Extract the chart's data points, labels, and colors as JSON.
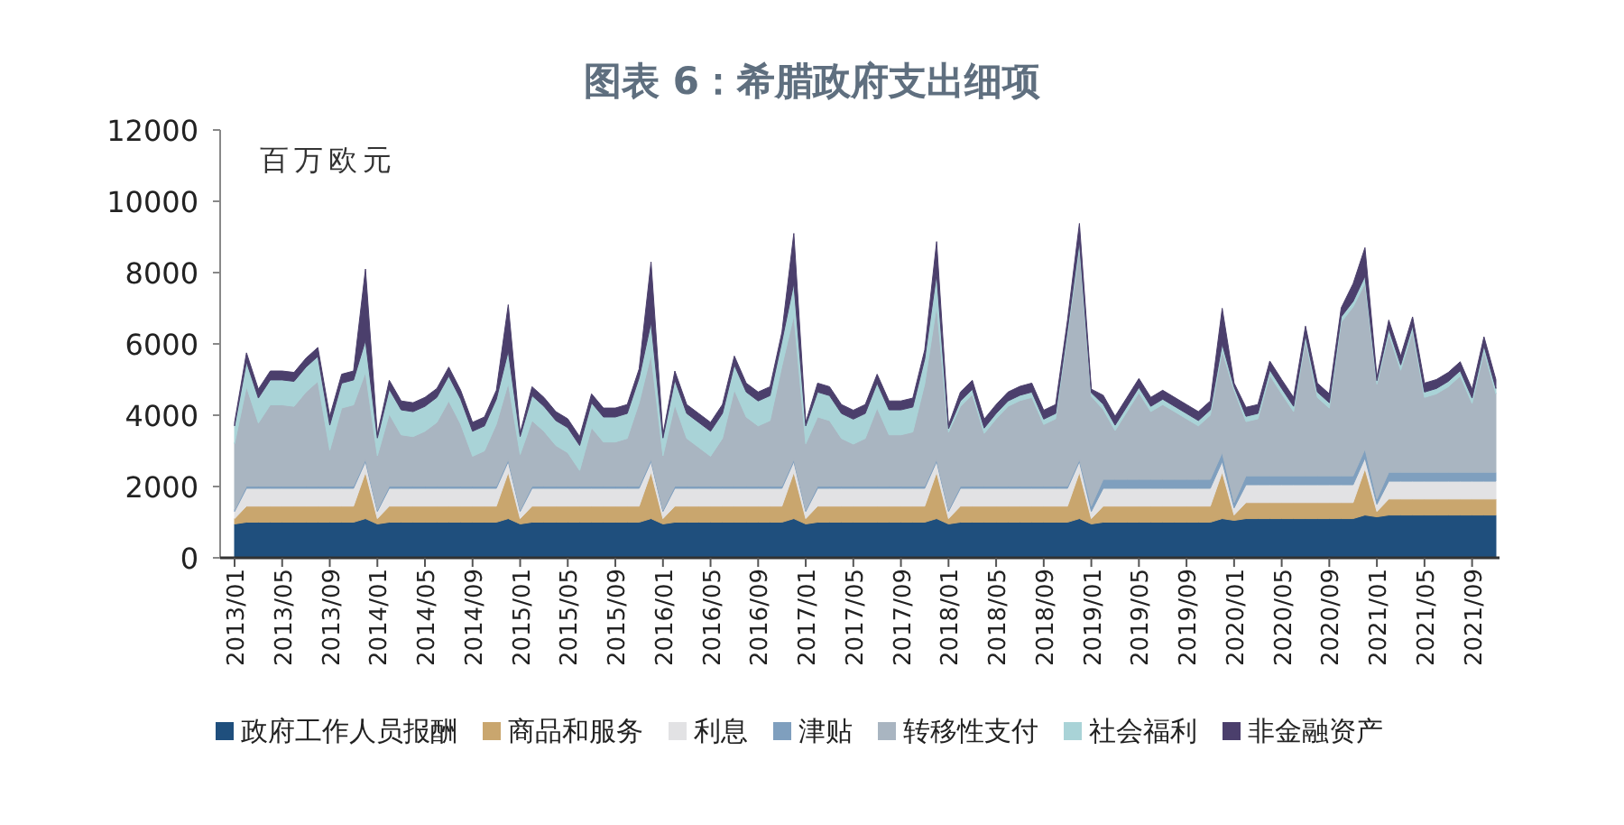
{
  "chart_data": {
    "type": "area",
    "stacked": true,
    "title": "图表 6：希腊政府支出细项",
    "ylabel": "百万欧元",
    "categories": [
      "2013/01",
      null,
      null,
      null,
      "2013/05",
      null,
      null,
      null,
      "2013/09",
      null,
      null,
      null,
      "2014/01",
      null,
      null,
      null,
      "2014/05",
      null,
      null,
      null,
      "2014/09",
      null,
      null,
      null,
      "2015/01",
      null,
      null,
      null,
      "2015/05",
      null,
      null,
      null,
      "2015/09",
      null,
      null,
      null,
      "2016/01",
      null,
      null,
      null,
      "2016/05",
      null,
      null,
      null,
      "2016/09",
      null,
      null,
      null,
      "2017/01",
      null,
      null,
      null,
      "2017/05",
      null,
      null,
      null,
      "2017/09",
      null,
      null,
      null,
      "2018/01",
      null,
      null,
      null,
      "2018/05",
      null,
      null,
      null,
      "2018/09",
      null,
      null,
      null,
      "2019/01",
      null,
      null,
      null,
      "2019/05",
      null,
      null,
      null,
      "2019/09",
      null,
      null,
      null,
      "2020/01",
      null,
      null,
      null,
      "2020/05",
      null,
      null,
      null,
      "2020/09",
      null,
      null,
      null,
      "2021/01",
      null,
      null,
      null,
      "2021/05",
      null,
      null,
      null,
      "2021/09",
      null,
      null
    ],
    "ylim": [
      0,
      12000
    ],
    "yticks": [
      0,
      2000,
      4000,
      6000,
      8000,
      10000,
      12000
    ],
    "grid": false,
    "legend": "bottom",
    "series": [
      {
        "name": "政府工作人员报酬",
        "color": "#1f4f7d",
        "values": [
          950,
          1000,
          1000,
          1000,
          1000,
          1000,
          1000,
          1000,
          1000,
          1000,
          1000,
          1100,
          950,
          1000,
          1000,
          1000,
          1000,
          1000,
          1000,
          1000,
          1000,
          1000,
          1000,
          1100,
          950,
          1000,
          1000,
          1000,
          1000,
          1000,
          1000,
          1000,
          1000,
          1000,
          1000,
          1100,
          950,
          1000,
          1000,
          1000,
          1000,
          1000,
          1000,
          1000,
          1000,
          1000,
          1000,
          1100,
          950,
          1000,
          1000,
          1000,
          1000,
          1000,
          1000,
          1000,
          1000,
          1000,
          1000,
          1100,
          950,
          1000,
          1000,
          1000,
          1000,
          1000,
          1000,
          1000,
          1000,
          1000,
          1000,
          1100,
          950,
          1000,
          1000,
          1000,
          1000,
          1000,
          1000,
          1000,
          1000,
          1000,
          1000,
          1100,
          1050,
          1100,
          1100,
          1100,
          1100,
          1100,
          1100,
          1100,
          1100,
          1100,
          1100,
          1200,
          1150,
          1200,
          1200,
          1200,
          1200,
          1200,
          1200,
          1200,
          1200,
          1200,
          1200
        ]
      },
      {
        "name": "商品和服务",
        "color": "#c9a66e",
        "values": [
          150,
          450,
          450,
          450,
          450,
          450,
          450,
          450,
          450,
          450,
          450,
          1300,
          150,
          450,
          450,
          450,
          450,
          450,
          450,
          450,
          450,
          450,
          450,
          1300,
          150,
          450,
          450,
          450,
          450,
          450,
          450,
          450,
          450,
          450,
          450,
          1300,
          150,
          450,
          450,
          450,
          450,
          450,
          450,
          450,
          450,
          450,
          450,
          1300,
          150,
          450,
          450,
          450,
          450,
          450,
          450,
          450,
          450,
          450,
          450,
          1300,
          150,
          450,
          450,
          450,
          450,
          450,
          450,
          450,
          450,
          450,
          450,
          1300,
          150,
          450,
          450,
          450,
          450,
          450,
          450,
          450,
          450,
          450,
          450,
          1300,
          150,
          450,
          450,
          450,
          450,
          450,
          450,
          450,
          450,
          450,
          450,
          1300,
          150,
          450,
          450,
          450,
          450,
          450,
          450,
          450,
          450,
          450,
          450
        ]
      },
      {
        "name": "利息",
        "color": "#e2e2e4",
        "values": [
          200,
          500,
          500,
          500,
          500,
          500,
          500,
          500,
          500,
          500,
          500,
          300,
          200,
          500,
          500,
          500,
          500,
          500,
          500,
          500,
          500,
          500,
          500,
          300,
          200,
          500,
          500,
          500,
          500,
          500,
          500,
          500,
          500,
          500,
          500,
          300,
          200,
          500,
          500,
          500,
          500,
          500,
          500,
          500,
          500,
          500,
          500,
          300,
          200,
          500,
          500,
          500,
          500,
          500,
          500,
          500,
          500,
          500,
          500,
          300,
          200,
          500,
          500,
          500,
          500,
          500,
          500,
          500,
          500,
          500,
          500,
          300,
          200,
          500,
          500,
          500,
          500,
          500,
          500,
          500,
          500,
          500,
          500,
          300,
          200,
          500,
          500,
          500,
          500,
          500,
          500,
          500,
          500,
          500,
          500,
          300,
          200,
          500,
          500,
          500,
          500,
          500,
          500,
          500,
          500,
          500,
          500
        ]
      },
      {
        "name": "津贴",
        "color": "#7f9fbe",
        "values": [
          40,
          60,
          60,
          60,
          60,
          60,
          60,
          60,
          60,
          60,
          60,
          60,
          40,
          60,
          60,
          60,
          60,
          60,
          60,
          60,
          60,
          60,
          60,
          60,
          40,
          60,
          60,
          60,
          60,
          60,
          60,
          60,
          60,
          60,
          60,
          60,
          40,
          60,
          60,
          60,
          60,
          60,
          60,
          60,
          60,
          60,
          60,
          60,
          40,
          60,
          60,
          60,
          60,
          60,
          60,
          60,
          60,
          60,
          60,
          60,
          40,
          60,
          60,
          60,
          60,
          60,
          60,
          60,
          60,
          60,
          60,
          60,
          150,
          250,
          250,
          250,
          250,
          250,
          250,
          250,
          250,
          250,
          250,
          250,
          150,
          250,
          250,
          250,
          250,
          250,
          250,
          250,
          250,
          250,
          250,
          250,
          150,
          250,
          250,
          250,
          250,
          250,
          250,
          250,
          250,
          250,
          250
        ]
      },
      {
        "name": "转移性支付",
        "color": "#a9b5c1",
        "values": [
          1860,
          2790,
          1770,
          2280,
          2280,
          2240,
          2640,
          2940,
          1010,
          2190,
          2280,
          2440,
          1520,
          2020,
          1440,
          1390,
          1540,
          1790,
          2390,
          1740,
          840,
          990,
          1740,
          2140,
          1560,
          1840,
          1540,
          1140,
          940,
          440,
          1640,
          1240,
          1240,
          1340,
          2340,
          2940,
          1520,
          2280,
          1340,
          1090,
          840,
          1340,
          2700,
          1940,
          1690,
          1840,
          3370,
          4040,
          1860,
          1940,
          1840,
          1340,
          1180,
          1340,
          2190,
          1440,
          1440,
          1520,
          2870,
          4310,
          2180,
          2240,
          2570,
          1480,
          1890,
          2240,
          2400,
          2490,
          1730,
          1890,
          4260,
          5920,
          3080,
          1960,
          1370,
          1900,
          2430,
          1900,
          2100,
          1900,
          1700,
          1500,
          1800,
          2850,
          3150,
          1520,
          1600,
          2820,
          2300,
          1800,
          3800,
          2200,
          1900,
          4310,
          4740,
          4650,
          3220,
          3870,
          2860,
          3960,
          2100,
          2200,
          2400,
          2700,
          1930,
          3400,
          2200
        ]
      },
      {
        "name": "社会福利",
        "color": "#a9d3d7",
        "values": [
          500,
          700,
          700,
          700,
          700,
          700,
          700,
          700,
          700,
          700,
          700,
          900,
          500,
          700,
          700,
          700,
          700,
          700,
          700,
          700,
          700,
          700,
          700,
          900,
          500,
          700,
          700,
          700,
          700,
          700,
          700,
          700,
          700,
          700,
          700,
          900,
          500,
          700,
          700,
          700,
          700,
          700,
          700,
          700,
          700,
          700,
          700,
          900,
          500,
          700,
          700,
          700,
          700,
          700,
          700,
          700,
          700,
          700,
          700,
          900,
          100,
          150,
          150,
          150,
          150,
          150,
          150,
          150,
          150,
          150,
          150,
          200,
          100,
          150,
          150,
          150,
          150,
          150,
          150,
          150,
          150,
          150,
          150,
          200,
          100,
          150,
          150,
          150,
          150,
          150,
          150,
          150,
          150,
          150,
          150,
          200,
          100,
          150,
          150,
          150,
          150,
          150,
          150,
          150,
          150,
          150,
          150
        ]
      },
      {
        "name": "非金融资产",
        "color": "#4b3f6c",
        "values": [
          100,
          250,
          250,
          250,
          250,
          250,
          250,
          250,
          250,
          250,
          250,
          2000,
          100,
          250,
          250,
          250,
          250,
          250,
          250,
          250,
          250,
          250,
          250,
          1300,
          100,
          250,
          250,
          250,
          250,
          250,
          250,
          250,
          250,
          250,
          250,
          1700,
          100,
          250,
          250,
          250,
          250,
          250,
          250,
          250,
          250,
          250,
          250,
          1400,
          100,
          250,
          250,
          250,
          250,
          250,
          250,
          250,
          250,
          250,
          250,
          900,
          100,
          250,
          250,
          250,
          250,
          250,
          250,
          250,
          250,
          250,
          250,
          500,
          100,
          250,
          250,
          250,
          250,
          250,
          250,
          250,
          250,
          250,
          250,
          1000,
          100,
          250,
          250,
          250,
          250,
          250,
          250,
          250,
          250,
          250,
          500,
          800,
          100,
          250,
          250,
          250,
          250,
          250,
          250,
          250,
          250,
          250,
          250
        ]
      }
    ]
  }
}
